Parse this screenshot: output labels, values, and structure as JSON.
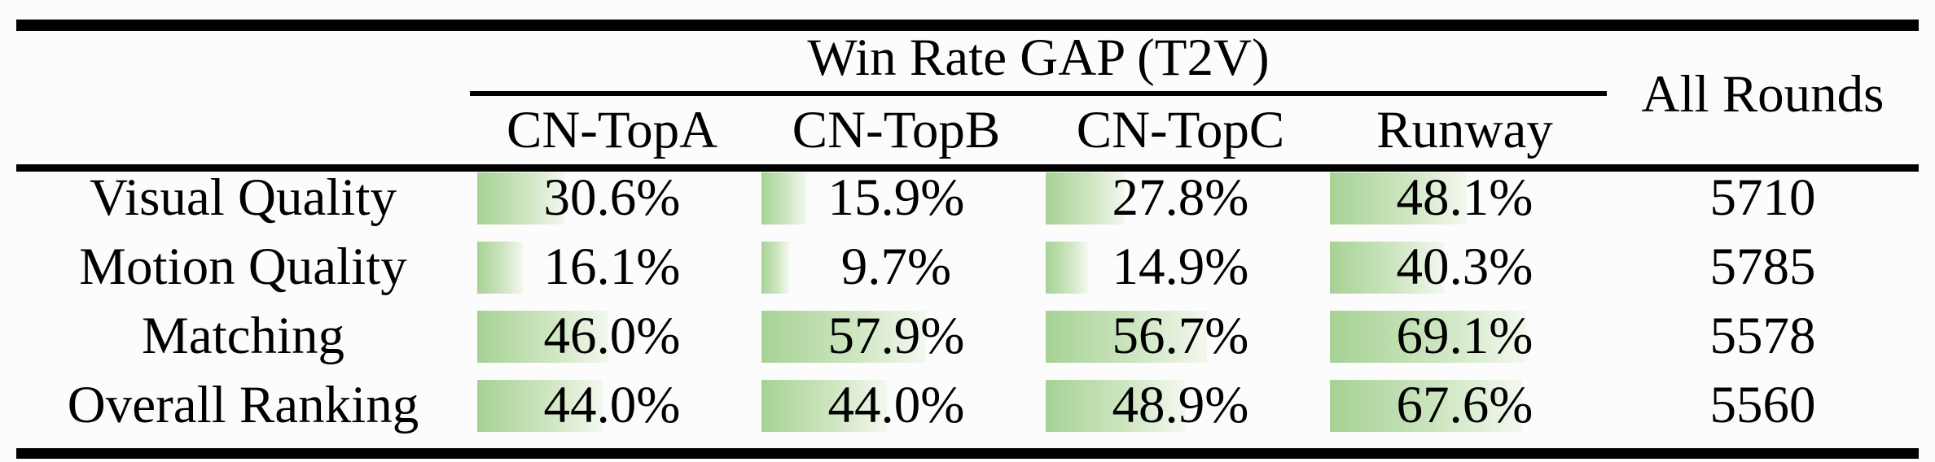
{
  "header": {
    "group_title": "Win Rate GAP (T2V)",
    "columns": [
      "CN-TopA",
      "CN-TopB",
      "CN-TopC",
      "Runway"
    ],
    "all_rounds_label": "All Rounds"
  },
  "rows": [
    {
      "label": "Visual Quality",
      "cells": [
        {
          "display": "30.6%",
          "value": 30.6
        },
        {
          "display": "15.9%",
          "value": 15.9
        },
        {
          "display": "27.8%",
          "value": 27.8
        },
        {
          "display": "48.1%",
          "value": 48.1
        }
      ],
      "rounds": "5710"
    },
    {
      "label": "Motion Quality",
      "cells": [
        {
          "display": "16.1%",
          "value": 16.1
        },
        {
          "display": "9.7%",
          "value": 9.7
        },
        {
          "display": "14.9%",
          "value": 14.9
        },
        {
          "display": "40.3%",
          "value": 40.3
        }
      ],
      "rounds": "5785"
    },
    {
      "label": "Matching",
      "cells": [
        {
          "display": "46.0%",
          "value": 46.0
        },
        {
          "display": "57.9%",
          "value": 57.9
        },
        {
          "display": "56.7%",
          "value": 56.7
        },
        {
          "display": "69.1%",
          "value": 69.1
        }
      ],
      "rounds": "5578"
    },
    {
      "label": "Overall Ranking",
      "cells": [
        {
          "display": "44.0%",
          "value": 44.0
        },
        {
          "display": "44.0%",
          "value": 44.0
        },
        {
          "display": "48.9%",
          "value": 48.9
        },
        {
          "display": "67.6%",
          "value": 67.6
        }
      ],
      "rounds": "5560"
    }
  ],
  "colors": {
    "bar_green": "#a6d295",
    "bar_mid": "#cde5bf",
    "bar_fade": "#f3f8ef",
    "rule": "#000000",
    "text": "#000000",
    "background": "#fcfcfc"
  },
  "chart_data": {
    "type": "table",
    "title": "Win Rate GAP (T2V)",
    "row_labels": [
      "Visual Quality",
      "Motion Quality",
      "Matching",
      "Overall Ranking"
    ],
    "columns": [
      "CN-TopA",
      "CN-TopB",
      "CN-TopC",
      "Runway",
      "All Rounds"
    ],
    "series": [
      {
        "name": "CN-TopA",
        "values": [
          30.6,
          16.1,
          46.0,
          44.0
        ]
      },
      {
        "name": "CN-TopB",
        "values": [
          15.9,
          9.7,
          57.9,
          44.0
        ]
      },
      {
        "name": "CN-TopC",
        "values": [
          27.8,
          14.9,
          56.7,
          48.9
        ]
      },
      {
        "name": "Runway",
        "values": [
          48.1,
          40.3,
          69.1,
          67.6
        ]
      }
    ],
    "all_rounds": [
      5710,
      5785,
      5578,
      5560
    ],
    "units": "percent win-rate gap; green data bar width proportional to value",
    "bar_range": [
      0,
      100
    ]
  }
}
